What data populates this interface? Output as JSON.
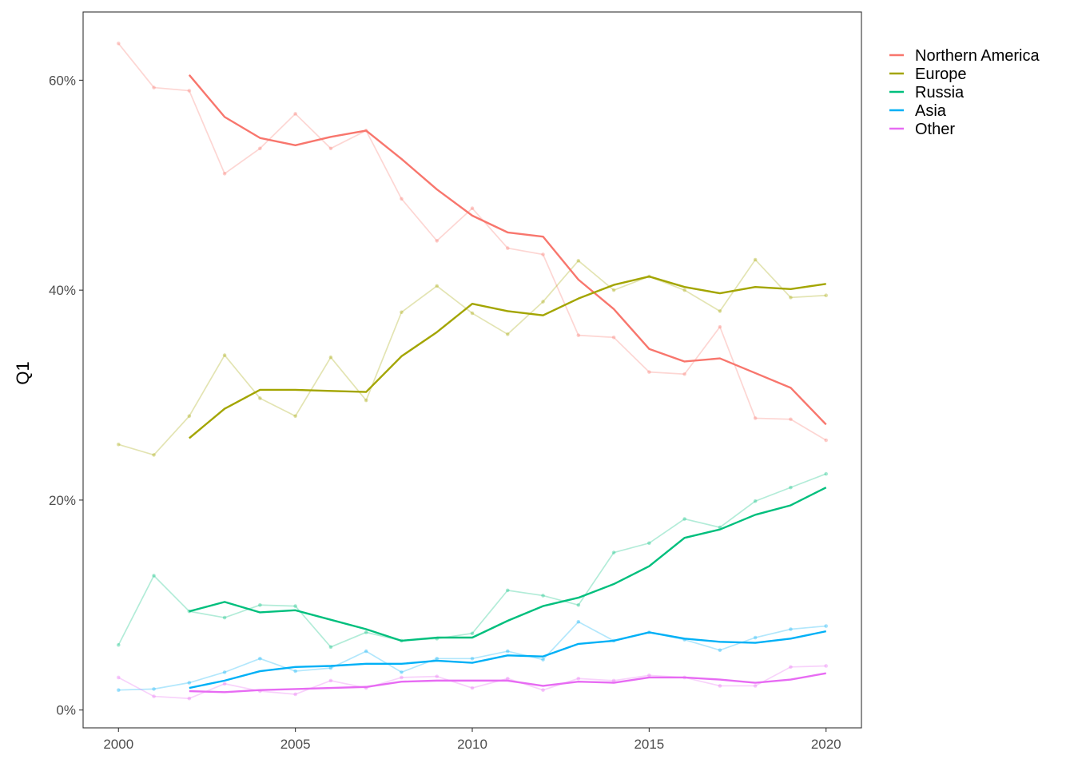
{
  "chart_data": {
    "type": "line",
    "title": "",
    "xlabel": "",
    "ylabel": "Q1",
    "x": [
      2000,
      2001,
      2002,
      2003,
      2004,
      2005,
      2006,
      2007,
      2008,
      2009,
      2010,
      2011,
      2012,
      2013,
      2014,
      2015,
      2016,
      2017,
      2018,
      2019,
      2020
    ],
    "xlim": [
      1999,
      2021
    ],
    "ylim": [
      -0.017,
      0.665
    ],
    "x_ticks": [
      2000,
      2005,
      2010,
      2015,
      2020
    ],
    "x_tick_labels": [
      "2000",
      "2005",
      "2010",
      "2015",
      "2020"
    ],
    "y_ticks": [
      0,
      0.2,
      0.4,
      0.6
    ],
    "y_tick_labels": [
      "0%",
      "20%",
      "40%",
      "60%"
    ],
    "grid": false,
    "legend_position": "right",
    "notes": "Faded lines with points are yearly values; bold lines are 3-year smoothed values starting 2002.",
    "series": [
      {
        "name": "Northern America",
        "color": "#F8766D",
        "raw": [
          0.635,
          0.593,
          0.59,
          0.511,
          0.535,
          0.568,
          0.535,
          0.552,
          0.487,
          0.447,
          0.478,
          0.44,
          0.434,
          0.357,
          0.355,
          0.322,
          0.32,
          0.365,
          0.278,
          0.277,
          0.257
        ],
        "smoothed": [
          null,
          null,
          0.605,
          0.565,
          0.545,
          0.538,
          0.546,
          0.552,
          0.525,
          0.496,
          0.471,
          0.455,
          0.451,
          0.41,
          0.382,
          0.344,
          0.332,
          0.335,
          0.321,
          0.307,
          0.272
        ]
      },
      {
        "name": "Europe",
        "color": "#A3A500",
        "raw": [
          0.253,
          0.243,
          0.28,
          0.338,
          0.297,
          0.28,
          0.336,
          0.295,
          0.379,
          0.404,
          0.378,
          0.358,
          0.389,
          0.428,
          0.4,
          0.413,
          0.4,
          0.38,
          0.429,
          0.393,
          0.395
        ],
        "smoothed": [
          null,
          null,
          0.259,
          0.287,
          0.305,
          0.305,
          0.304,
          0.303,
          0.337,
          0.36,
          0.387,
          0.38,
          0.376,
          0.392,
          0.405,
          0.413,
          0.403,
          0.397,
          0.403,
          0.401,
          0.406
        ]
      },
      {
        "name": "Russia",
        "color": "#00BF7D",
        "raw": [
          0.062,
          0.128,
          0.094,
          0.088,
          0.1,
          0.099,
          0.06,
          0.074,
          0.066,
          0.068,
          0.073,
          0.114,
          0.109,
          0.1,
          0.15,
          0.159,
          0.182,
          0.174,
          0.199,
          0.212,
          0.225
        ],
        "smoothed": [
          null,
          null,
          0.094,
          0.103,
          0.093,
          0.095,
          0.086,
          0.077,
          0.066,
          0.069,
          0.069,
          0.085,
          0.099,
          0.107,
          0.12,
          0.137,
          0.164,
          0.172,
          0.186,
          0.195,
          0.212
        ]
      },
      {
        "name": "Asia",
        "color": "#00B0F6",
        "raw": [
          0.019,
          0.02,
          0.026,
          0.036,
          0.049,
          0.037,
          0.04,
          0.056,
          0.036,
          0.049,
          0.049,
          0.056,
          0.048,
          0.084,
          0.066,
          0.074,
          0.067,
          0.057,
          0.069,
          0.077,
          0.08
        ],
        "smoothed": [
          null,
          null,
          0.021,
          0.028,
          0.037,
          0.041,
          0.042,
          0.044,
          0.044,
          0.047,
          0.045,
          0.052,
          0.051,
          0.063,
          0.066,
          0.074,
          0.068,
          0.065,
          0.064,
          0.068,
          0.075
        ]
      },
      {
        "name": "Other",
        "color": "#E76BF3",
        "raw": [
          0.031,
          0.013,
          0.011,
          0.025,
          0.018,
          0.015,
          0.028,
          0.021,
          0.031,
          0.032,
          0.021,
          0.03,
          0.019,
          0.03,
          0.028,
          0.033,
          0.031,
          0.023,
          0.023,
          0.041,
          0.042
        ],
        "smoothed": [
          null,
          null,
          0.018,
          0.017,
          0.019,
          0.02,
          0.021,
          0.022,
          0.027,
          0.028,
          0.028,
          0.028,
          0.023,
          0.027,
          0.026,
          0.031,
          0.031,
          0.029,
          0.026,
          0.029,
          0.035
        ]
      }
    ]
  }
}
